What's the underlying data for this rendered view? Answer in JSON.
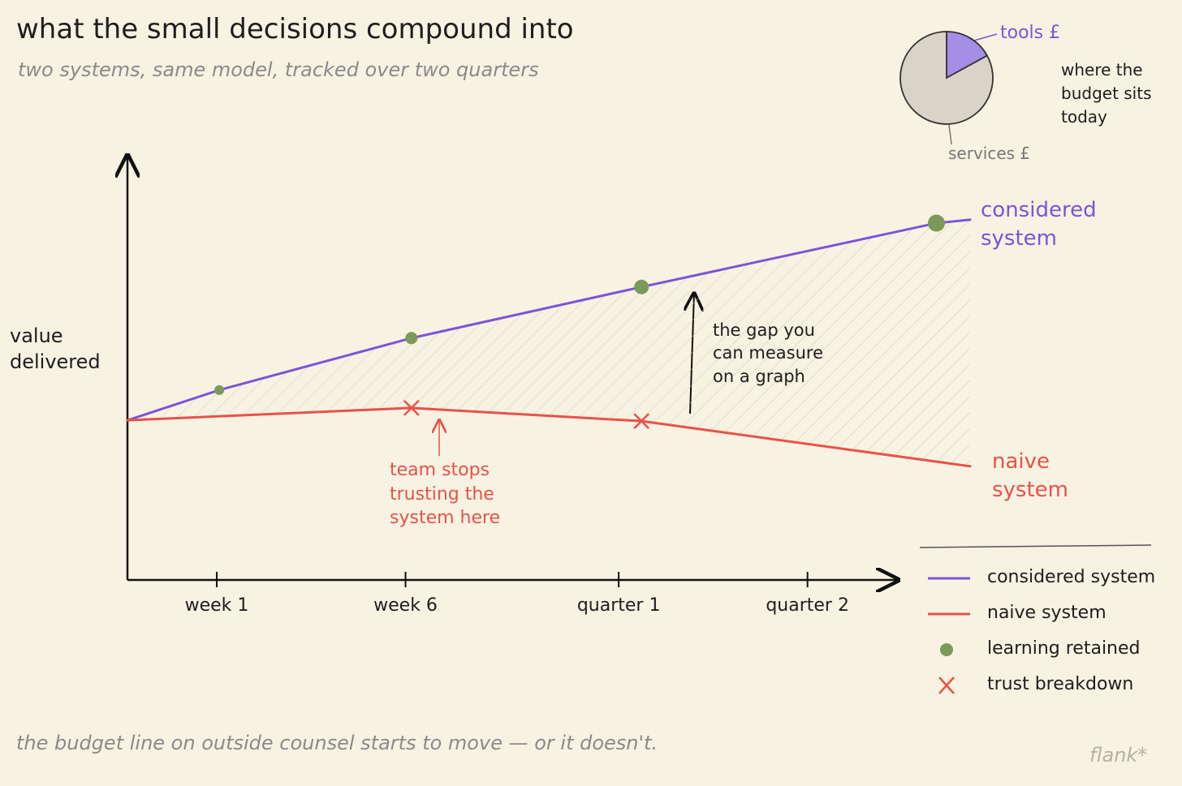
{
  "chart_data": [
    {
      "type": "line",
      "title": "what the small decisions compound into",
      "subtitle": "two systems, same model, tracked over two quarters",
      "y_label": "value delivered",
      "xlim": [
        0,
        100
      ],
      "ylim": [
        0,
        100
      ],
      "xticks": [
        {
          "value": 10.6,
          "label": "week 1"
        },
        {
          "value": 33,
          "label": "week 6"
        },
        {
          "value": 58.3,
          "label": "quarter 1"
        },
        {
          "value": 80.7,
          "label": "quarter 2"
        }
      ],
      "series": [
        {
          "name": "considered system",
          "color": "#7b55d6",
          "x": [
            0,
            10.9,
            33.7,
            61,
            96,
            100
          ],
          "values": [
            37.5,
            44.6,
            56.8,
            68.8,
            83.8,
            84.6
          ]
        },
        {
          "name": "naive system",
          "color": "#e8524a",
          "x": [
            0,
            33.7,
            61,
            100
          ],
          "values": [
            37.5,
            40.4,
            37.3,
            26.7
          ]
        },
        {
          "name": "learning retained",
          "type": "scatter",
          "marker": "dot",
          "color": "#7a9a5a",
          "x": [
            10.9,
            33.7,
            61,
            96
          ],
          "values": [
            44.6,
            56.8,
            68.8,
            83.8
          ]
        },
        {
          "name": "trust breakdown",
          "type": "scatter",
          "marker": "x",
          "color": "#e8524a",
          "x": [
            33.7,
            61
          ],
          "values": [
            40.4,
            37.3
          ]
        }
      ],
      "annotations": [
        {
          "text": "the gap you can measure on a graph"
        },
        {
          "text": "team stops trusting the system here"
        }
      ],
      "legend": "bottom right"
    },
    {
      "type": "pie",
      "title": "where the budget sits today",
      "categories": [
        "tools £",
        "services £"
      ],
      "values": [
        17,
        83
      ],
      "colors": [
        "#a58ee6",
        "#d9d4c8"
      ]
    }
  ],
  "footer": "the budget line on outside counsel starts to move — or it doesn't.",
  "signature": "flank*"
}
